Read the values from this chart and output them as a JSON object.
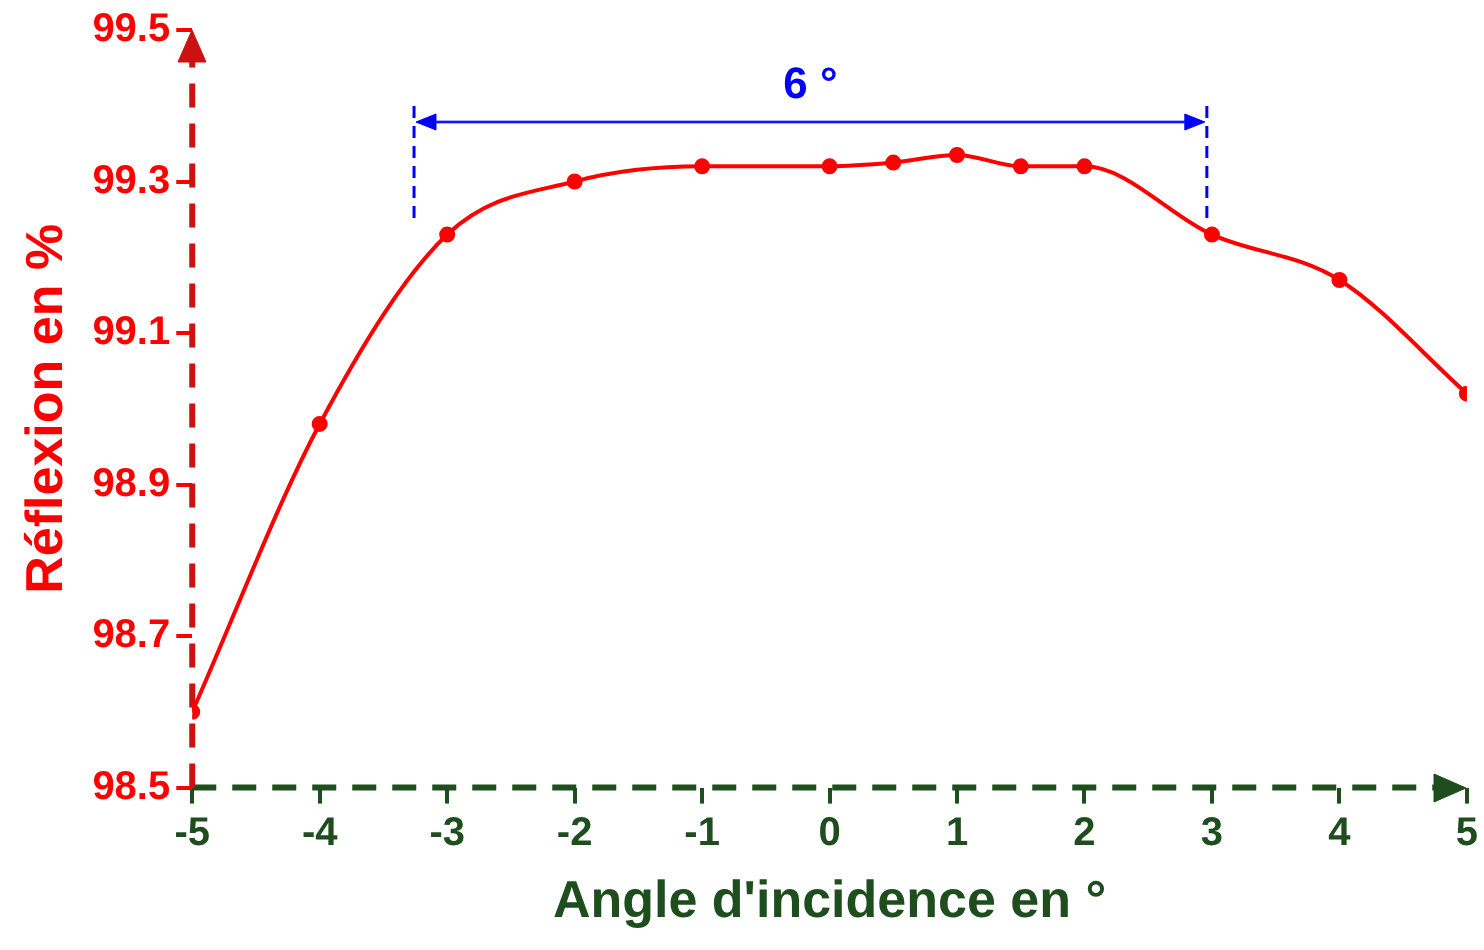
{
  "chart_data": {
    "type": "line",
    "xlabel": "Angle d'incidence en °",
    "ylabel": "Réflexion en %",
    "x": [
      -5,
      -4,
      -3,
      -2,
      -1,
      0,
      0.5,
      1,
      1.5,
      2,
      3,
      4,
      5
    ],
    "series": [
      {
        "color": "#ff0000",
        "values": [
          98.6,
          98.98,
          99.23,
          99.3,
          99.32,
          99.32,
          99.325,
          99.335,
          99.32,
          99.32,
          99.23,
          99.17,
          99.02
        ]
      }
    ],
    "xlim": [
      -5,
      5
    ],
    "xticks": [
      -5,
      -4,
      -3,
      -2,
      -1,
      0,
      1,
      2,
      3,
      4,
      5
    ],
    "ylim": [
      98.5,
      99.5
    ],
    "yticks": [
      98.5,
      98.7,
      98.9,
      99.1,
      99.3,
      99.5
    ],
    "ref_lines": [
      {
        "axis": "x",
        "value": -3.26,
        "color": "#0000ff",
        "line_style": "dashed"
      },
      {
        "axis": "x",
        "value": 2.96,
        "color": "#0000ff",
        "line_style": "dashed"
      }
    ],
    "annotations": [
      "6 °"
    ],
    "grid": false,
    "legend": false,
    "marker": "circle",
    "line_style": "solid"
  }
}
